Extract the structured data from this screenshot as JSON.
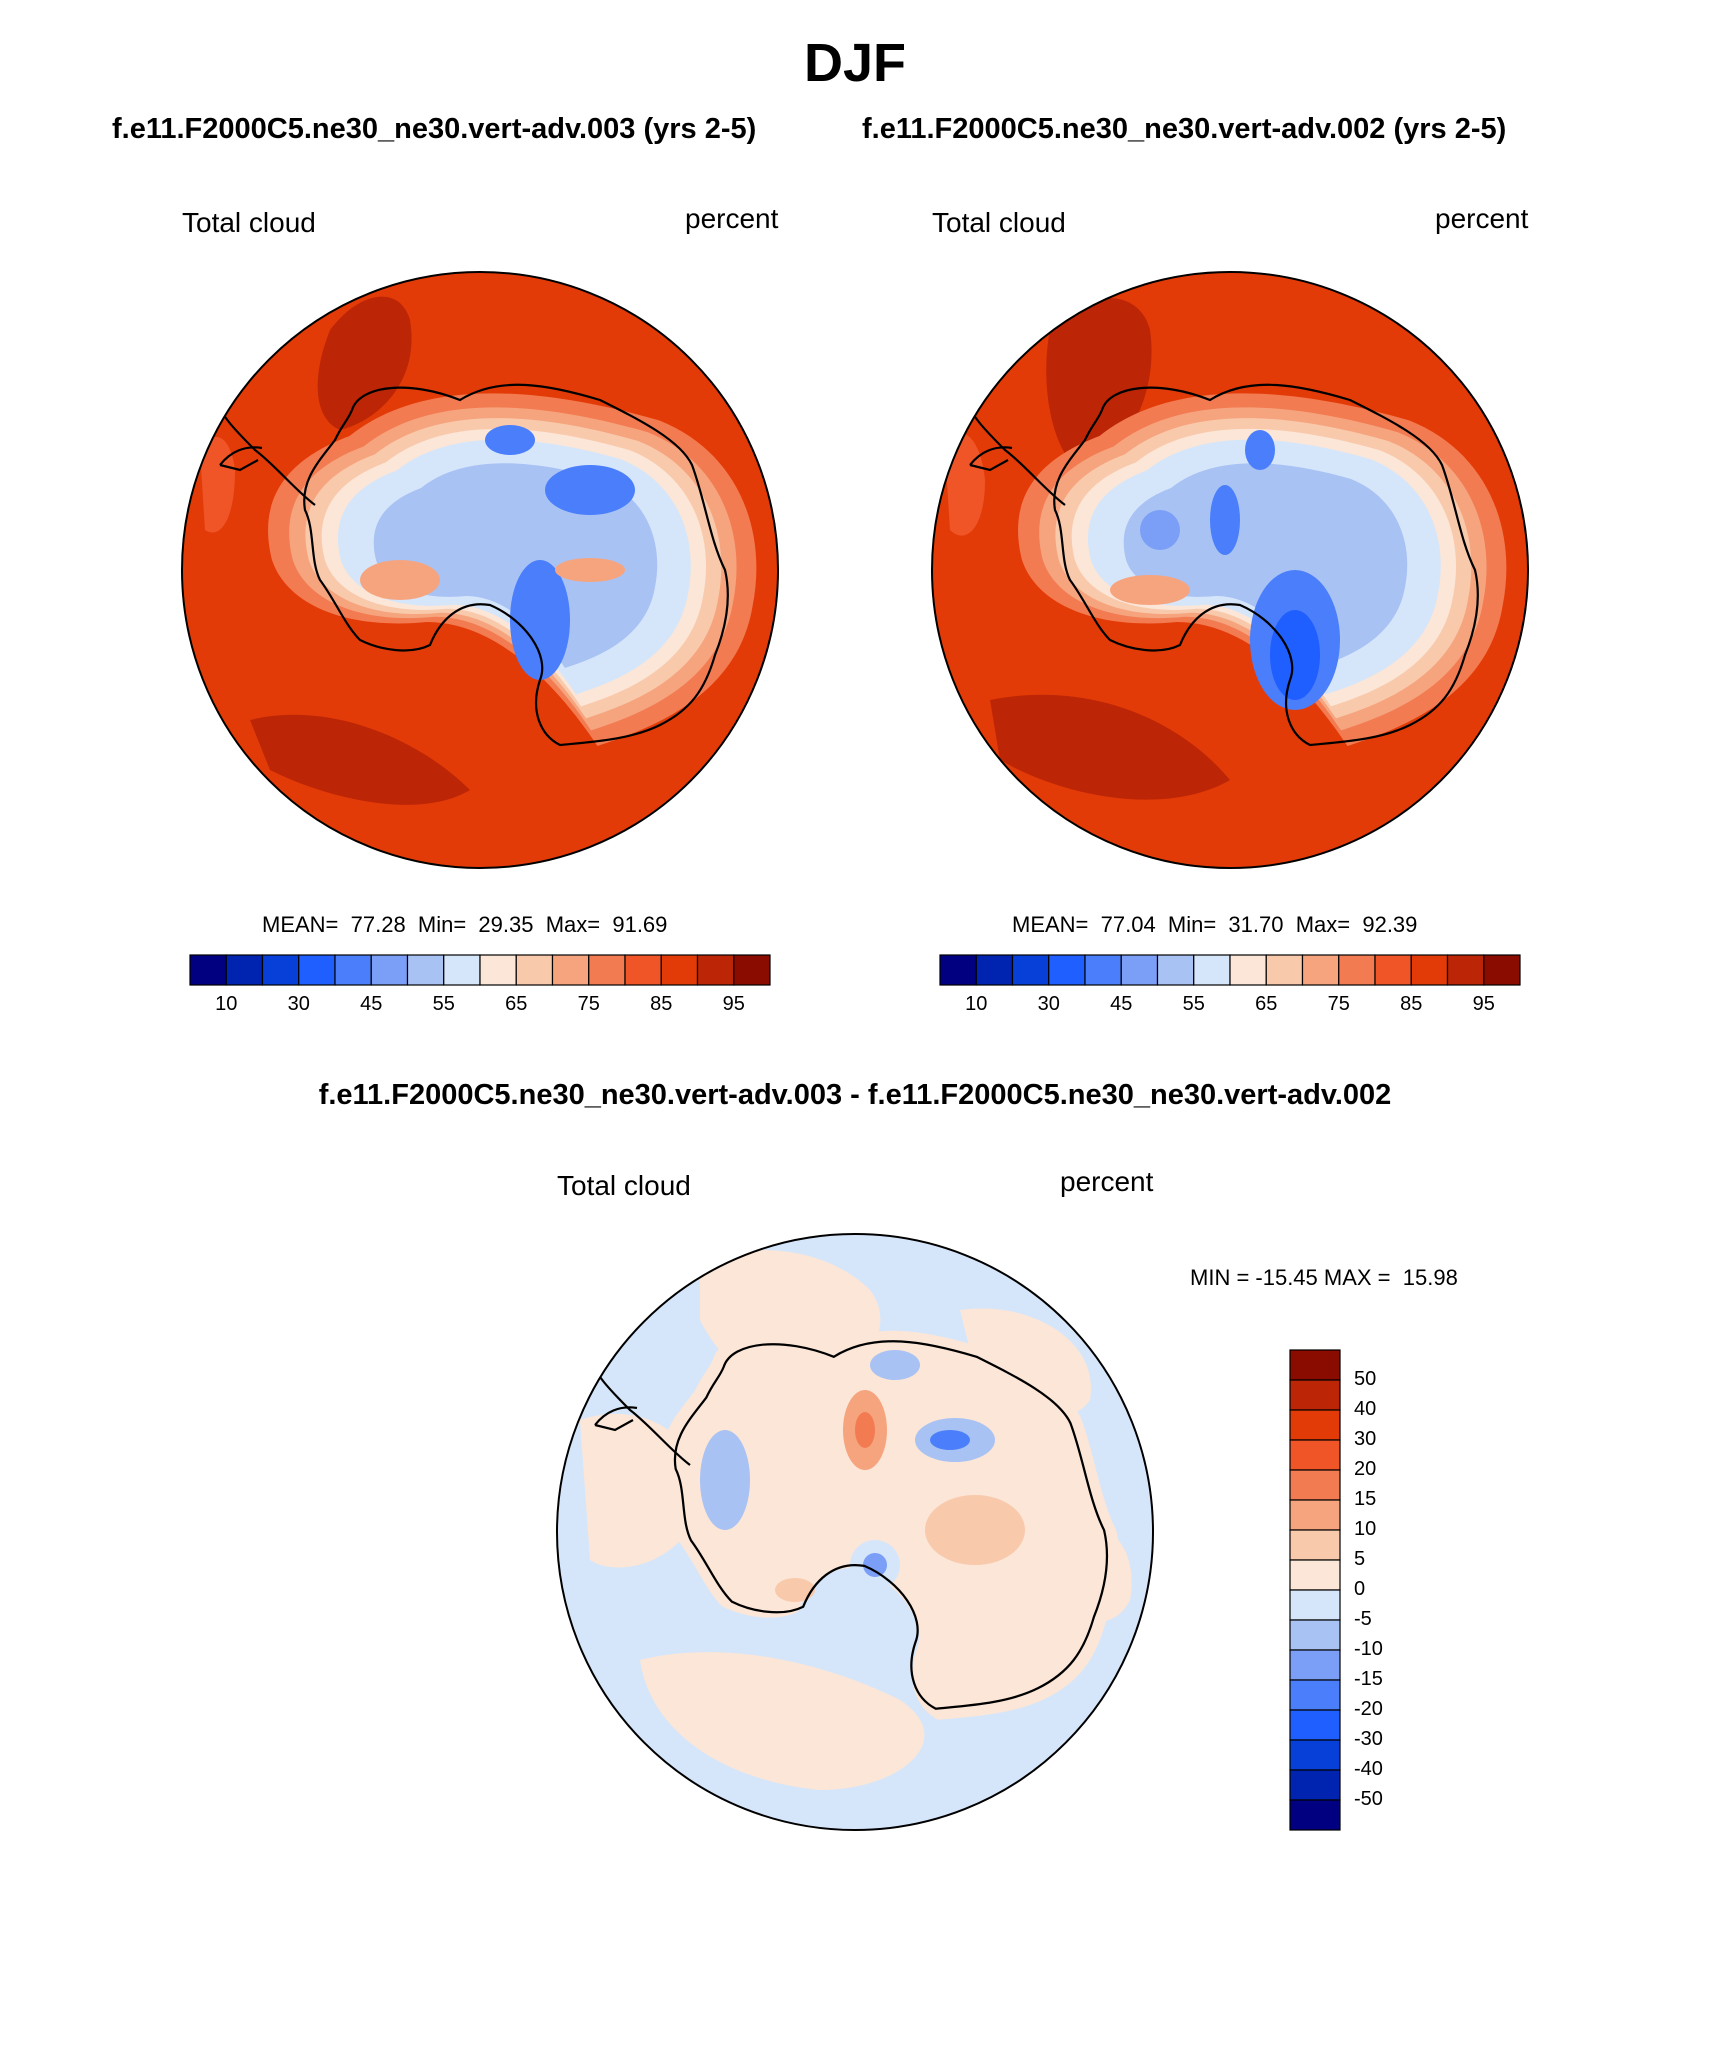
{
  "title": "DJF",
  "panels": [
    {
      "case_title": "f.e11.F2000C5.ne30_ne30.vert-adv.003 (yrs 2-5)",
      "field_label": "Total cloud",
      "units": "percent",
      "stats": "MEAN=  77.28  Min=  29.35  Max=  91.69"
    },
    {
      "case_title": "f.e11.F2000C5.ne30_ne30.vert-adv.002 (yrs 2-5)",
      "field_label": "Total cloud",
      "units": "percent",
      "stats": "MEAN=  77.04  Min=  31.70  Max=  92.39"
    }
  ],
  "abs_colorbar": {
    "colors": [
      "#000080",
      "#0023b0",
      "#0640d8",
      "#1f5eff",
      "#4a7efb",
      "#7b9ef6",
      "#a9c2f4",
      "#d6e6fa",
      "#fbe6d7",
      "#f9c9ac",
      "#f6a47e",
      "#f27b52",
      "#f05528",
      "#e33b07",
      "#bc2506",
      "#8a0b00"
    ],
    "labels": [
      "10",
      "30",
      "45",
      "55",
      "65",
      "75",
      "85",
      "95"
    ]
  },
  "diff": {
    "title": "f.e11.F2000C5.ne30_ne30.vert-adv.003 - f.e11.F2000C5.ne30_ne30.vert-adv.002",
    "field_label": "Total cloud",
    "units": "percent",
    "stats": "MIN = -15.45 MAX =  15.98"
  },
  "diff_colorbar": {
    "colors": [
      "#8a0b00",
      "#bc2506",
      "#e33b07",
      "#f05528",
      "#f27b52",
      "#f6a47e",
      "#f9c9ac",
      "#fbe6d7",
      "#d6e6fa",
      "#a9c2f4",
      "#7b9ef6",
      "#4a7efb",
      "#1f5eff",
      "#0640d8",
      "#0023b0",
      "#000080"
    ],
    "labels": [
      "50",
      "40",
      "30",
      "20",
      "15",
      "10",
      "5",
      "0",
      "-5",
      "-10",
      "-15",
      "-20",
      "-30",
      "-40",
      "-50"
    ]
  }
}
